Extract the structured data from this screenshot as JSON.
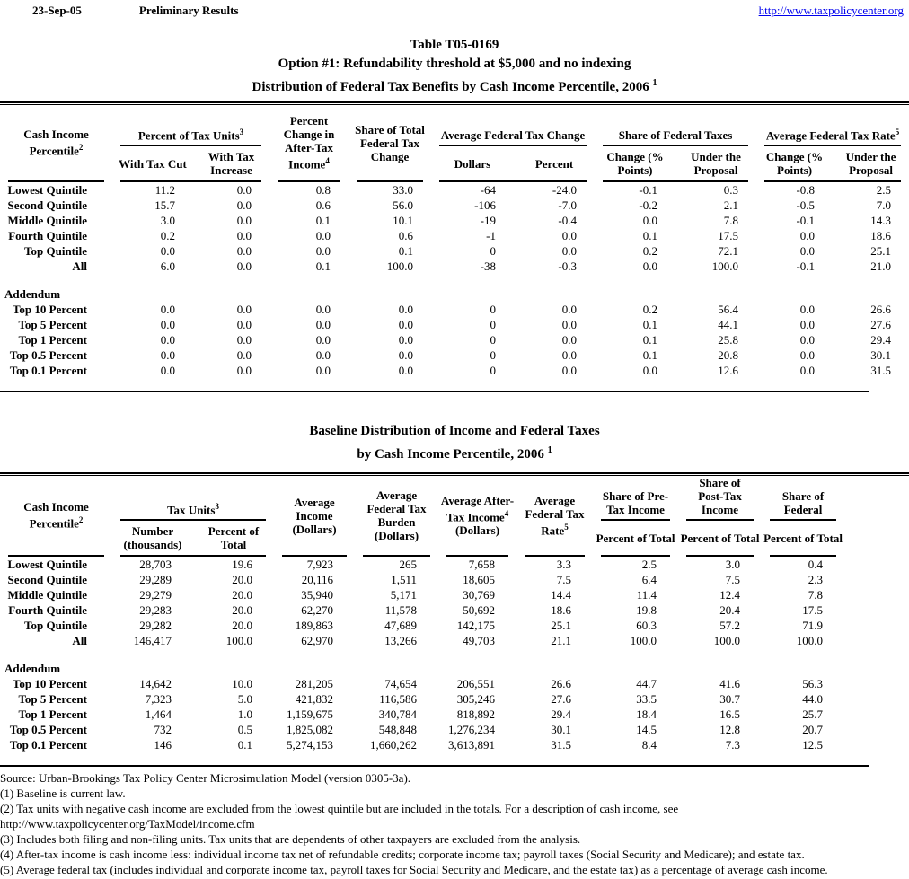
{
  "colors": {
    "link_blue": "#0000EE",
    "text": "#000000",
    "background": "#FFFFFF"
  },
  "header": {
    "date": "23-Sep-05",
    "status": "Preliminary Results",
    "link": "http://www.taxpolicycenter.org"
  },
  "t1": {
    "title1": "Table T05-0169",
    "title2": "Option #1: Refundability threshold at $5,000 and no indexing",
    "title3": "Distribution of Federal Tax Benefits by Cash Income Percentile, 2006",
    "title3_sup": "1",
    "h": {
      "cash": "Cash Income Percentile",
      "cash_sup": "2",
      "units": "Percent of Tax Units",
      "units_sup": "3",
      "with_cut": "With Tax Cut",
      "with_inc": "With Tax Increase",
      "pct_change": "Percent Change in After-Tax Income",
      "pct_change_sup": "4",
      "share_total": "Share of Total Federal Tax Change",
      "avg_change": "Average Federal Tax Change",
      "dollars": "Dollars",
      "percent": "Percent",
      "share_fed": "Share of Federal Taxes",
      "change_pts": "Change (% Points)",
      "under_prop": "Under the Proposal",
      "avg_rate": "Average Federal Tax Rate",
      "avg_rate_sup": "5"
    },
    "rows": [
      [
        "Lowest Quintile",
        "11.2",
        "0.0",
        "0.8",
        "33.0",
        "-64",
        "-24.0",
        "-0.1",
        "0.3",
        "-0.8",
        "2.5"
      ],
      [
        "Second Quintile",
        "15.7",
        "0.0",
        "0.6",
        "56.0",
        "-106",
        "-7.0",
        "-0.2",
        "2.1",
        "-0.5",
        "7.0"
      ],
      [
        "Middle Quintile",
        "3.0",
        "0.0",
        "0.1",
        "10.1",
        "-19",
        "-0.4",
        "0.0",
        "7.8",
        "-0.1",
        "14.3"
      ],
      [
        "Fourth Quintile",
        "0.2",
        "0.0",
        "0.0",
        "0.6",
        "-1",
        "0.0",
        "0.1",
        "17.5",
        "0.0",
        "18.6"
      ],
      [
        "Top Quintile",
        "0.0",
        "0.0",
        "0.0",
        "0.1",
        "0",
        "0.0",
        "0.2",
        "72.1",
        "0.0",
        "25.1"
      ],
      [
        "All",
        "6.0",
        "0.0",
        "0.1",
        "100.0",
        "-38",
        "-0.3",
        "0.0",
        "100.0",
        "-0.1",
        "21.0"
      ]
    ],
    "addendum": "Addendum",
    "addendum_rows": [
      [
        "Top 10 Percent",
        "0.0",
        "0.0",
        "0.0",
        "0.0",
        "0",
        "0.0",
        "0.2",
        "56.4",
        "0.0",
        "26.6"
      ],
      [
        "Top 5 Percent",
        "0.0",
        "0.0",
        "0.0",
        "0.0",
        "0",
        "0.0",
        "0.1",
        "44.1",
        "0.0",
        "27.6"
      ],
      [
        "Top 1 Percent",
        "0.0",
        "0.0",
        "0.0",
        "0.0",
        "0",
        "0.0",
        "0.1",
        "25.8",
        "0.0",
        "29.4"
      ],
      [
        "Top 0.5 Percent",
        "0.0",
        "0.0",
        "0.0",
        "0.0",
        "0",
        "0.0",
        "0.1",
        "20.8",
        "0.0",
        "30.1"
      ],
      [
        "Top 0.1 Percent",
        "0.0",
        "0.0",
        "0.0",
        "0.0",
        "0",
        "0.0",
        "0.0",
        "12.6",
        "0.0",
        "31.5"
      ]
    ]
  },
  "t2": {
    "title1": "Baseline Distribution of Income and Federal Taxes",
    "title2": "by Cash Income Percentile, 2006",
    "title2_sup": "1",
    "h": {
      "cash": "Cash Income Percentile",
      "cash_sup": "2",
      "units": "Tax Units",
      "units_sup": "3",
      "number": "Number (thousands)",
      "pct_total": "Percent of Total",
      "avg_income": "Average Income (Dollars)",
      "avg_burden": "Average Federal Tax Burden (Dollars)",
      "avg_after": "Average After-Tax Income",
      "avg_after_sup": "4",
      "avg_after2": "(Dollars)",
      "avg_rate": "Average Federal Tax Rate",
      "avg_rate_sup": "5",
      "share_pre": "Share of Pre-Tax Income",
      "share_post": "Share of Post-Tax Income",
      "share_fed": "Share of Federal"
    },
    "rows": [
      [
        "Lowest Quintile",
        "28,703",
        "19.6",
        "7,923",
        "265",
        "7,658",
        "3.3",
        "2.5",
        "3.0",
        "0.4"
      ],
      [
        "Second Quintile",
        "29,289",
        "20.0",
        "20,116",
        "1,511",
        "18,605",
        "7.5",
        "6.4",
        "7.5",
        "2.3"
      ],
      [
        "Middle Quintile",
        "29,279",
        "20.0",
        "35,940",
        "5,171",
        "30,769",
        "14.4",
        "11.4",
        "12.4",
        "7.8"
      ],
      [
        "Fourth Quintile",
        "29,283",
        "20.0",
        "62,270",
        "11,578",
        "50,692",
        "18.6",
        "19.8",
        "20.4",
        "17.5"
      ],
      [
        "Top Quintile",
        "29,282",
        "20.0",
        "189,863",
        "47,689",
        "142,175",
        "25.1",
        "60.3",
        "57.2",
        "71.9"
      ],
      [
        "All",
        "146,417",
        "100.0",
        "62,970",
        "13,266",
        "49,703",
        "21.1",
        "100.0",
        "100.0",
        "100.0"
      ]
    ],
    "addendum": "Addendum",
    "addendum_rows": [
      [
        "Top 10 Percent",
        "14,642",
        "10.0",
        "281,205",
        "74,654",
        "206,551",
        "26.6",
        "44.7",
        "41.6",
        "56.3"
      ],
      [
        "Top 5 Percent",
        "7,323",
        "5.0",
        "421,832",
        "116,586",
        "305,246",
        "27.6",
        "33.5",
        "30.7",
        "44.0"
      ],
      [
        "Top 1 Percent",
        "1,464",
        "1.0",
        "1,159,675",
        "340,784",
        "818,892",
        "29.4",
        "18.4",
        "16.5",
        "25.7"
      ],
      [
        "Top 0.5 Percent",
        "732",
        "0.5",
        "1,825,082",
        "548,848",
        "1,276,234",
        "30.1",
        "14.5",
        "12.8",
        "20.7"
      ],
      [
        "Top 0.1 Percent",
        "146",
        "0.1",
        "5,274,153",
        "1,660,262",
        "3,613,891",
        "31.5",
        "8.4",
        "7.3",
        "12.5"
      ]
    ]
  },
  "footnotes": [
    "Source: Urban-Brookings Tax Policy Center Microsimulation Model (version 0305-3a).",
    "(1) Baseline is current law.",
    "(2) Tax units with negative cash income are excluded from the lowest quintile but are included in the totals. For a description of cash income, see",
    "http://www.taxpolicycenter.org/TaxModel/income.cfm",
    "(3) Includes both filing and non-filing units.  Tax units that are dependents of other taxpayers are excluded from the analysis.",
    "(4) After-tax income is cash income less: individual income tax net of refundable credits; corporate income tax; payroll taxes (Social Security and Medicare); and estate tax.",
    "(5) Average federal tax (includes individual and corporate income tax, payroll taxes for Social Security and Medicare, and the estate tax) as a percentage of average cash income."
  ]
}
